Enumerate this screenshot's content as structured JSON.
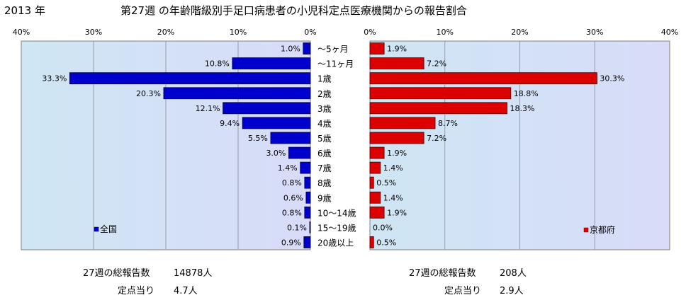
{
  "header": {
    "year": "2013 年",
    "title": "第27週 の年齢階級別手足口病患者の小児科定点医療機関からの報告割合"
  },
  "chart_data": [
    {
      "type": "bar",
      "orientation": "horizontal",
      "direction": "right-to-left",
      "legend": "全国",
      "legend_position": "bottom-left",
      "color": "#0000cc",
      "xlim": [
        0,
        40
      ],
      "ticks": [
        "40%",
        "30%",
        "20%",
        "10%",
        "0%"
      ],
      "grid": true,
      "categories": [
        "～5ヶ月",
        "～11ヶ月",
        "1歳",
        "2歳",
        "3歳",
        "4歳",
        "5歳",
        "6歳",
        "7歳",
        "8歳",
        "9歳",
        "10～14歳",
        "15～19歳",
        "20歳以上"
      ],
      "values": [
        1.0,
        10.8,
        33.3,
        20.3,
        12.1,
        9.4,
        5.5,
        3.0,
        1.4,
        0.8,
        0.6,
        0.8,
        0.1,
        0.9
      ],
      "value_labels": [
        "1.0%",
        "10.8%",
        "33.3%",
        "20.3%",
        "12.1%",
        "9.4%",
        "5.5%",
        "3.0%",
        "1.4%",
        "0.8%",
        "0.6%",
        "0.8%",
        "0.1%",
        "0.9%"
      ]
    },
    {
      "type": "bar",
      "orientation": "horizontal",
      "direction": "left-to-right",
      "legend": "京都府",
      "legend_position": "bottom-right",
      "color": "#dd0000",
      "xlim": [
        0,
        40
      ],
      "ticks": [
        "0%",
        "10%",
        "20%",
        "30%",
        "40%"
      ],
      "grid": true,
      "categories": [
        "～5ヶ月",
        "～11ヶ月",
        "1歳",
        "2歳",
        "3歳",
        "4歳",
        "5歳",
        "6歳",
        "7歳",
        "8歳",
        "9歳",
        "10～14歳",
        "15～19歳",
        "20歳以上"
      ],
      "values": [
        1.9,
        7.2,
        30.3,
        18.8,
        18.3,
        8.7,
        7.2,
        1.9,
        1.4,
        0.5,
        1.4,
        1.9,
        0.0,
        0.5
      ],
      "value_labels": [
        "1.9%",
        "7.2%",
        "30.3%",
        "18.8%",
        "18.3%",
        "8.7%",
        "7.2%",
        "1.9%",
        "1.4%",
        "0.5%",
        "1.4%",
        "1.9%",
        "0.0%",
        "0.5%"
      ]
    }
  ],
  "footer": {
    "national": {
      "reports_label": "27週の総報告数",
      "reports_value": "14878人",
      "per_site_label": "定点当り",
      "per_site_value": "4.7人"
    },
    "kyoto": {
      "reports_label": "27週の総報告数",
      "reports_value": "208人",
      "per_site_label": "定点当り",
      "per_site_value": "2.9人"
    }
  }
}
